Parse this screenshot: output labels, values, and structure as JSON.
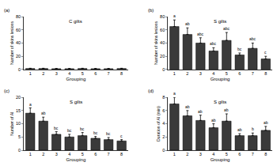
{
  "chart_data": [
    {
      "type": "bar",
      "panel_label": "(a)",
      "title": "C gilts",
      "x_label": "Grouping",
      "y_label": "Number of skins lesions",
      "categories": [
        "1",
        "2",
        "3",
        "4",
        "5",
        "6",
        "7",
        "8"
      ],
      "values": [
        1.5,
        1.5,
        1.2,
        1.2,
        1.5,
        1.2,
        1.2,
        1.5
      ],
      "errors": [
        0.4,
        0.4,
        0.3,
        0.3,
        0.4,
        0.3,
        0.3,
        0.4
      ],
      "color": "#3a3a3a",
      "ylim": [
        0,
        80
      ],
      "yticks": [
        0,
        20,
        40,
        60,
        80
      ],
      "grid": false
    },
    {
      "type": "bar",
      "panel_label": "(b)",
      "title": "S gilts",
      "x_label": "Grouping",
      "y_label": "Number of skins lesions",
      "categories": [
        "1",
        "2",
        "3",
        "4",
        "5",
        "6",
        "7",
        "8"
      ],
      "values": [
        65,
        53,
        40,
        28,
        44,
        22,
        32,
        16
      ],
      "errors": [
        10,
        10,
        8,
        5,
        12,
        3,
        8,
        4
      ],
      "significance_letters": [
        "a",
        "ab",
        "abc",
        "abc",
        "abc",
        "bc",
        "abc",
        "c"
      ],
      "color": "#3a3a3a",
      "ylim": [
        0,
        80
      ],
      "yticks": [
        0,
        20,
        40,
        60,
        80
      ],
      "grid": false
    },
    {
      "type": "bar",
      "panel_label": "(c)",
      "title": "S gilts",
      "x_label": "Grouping",
      "y_label": "Number of AI",
      "categories": [
        "1",
        "2",
        "3",
        "4",
        "5",
        "6",
        "7",
        "8"
      ],
      "values": [
        14,
        11,
        6,
        5,
        5.5,
        4.5,
        4,
        3.5
      ],
      "errors": [
        2,
        1.5,
        1,
        1,
        1.2,
        0.7,
        0.8,
        0.5
      ],
      "significance_letters": [
        "a",
        "ab",
        "bc",
        "bc",
        "bc",
        "bc",
        "bc",
        "c"
      ],
      "color": "#3a3a3a",
      "ylim": [
        0,
        20
      ],
      "yticks": [
        0,
        5,
        10,
        15,
        20
      ],
      "grid": false
    },
    {
      "type": "bar",
      "panel_label": "(d)",
      "title": "S gilts",
      "x_label": "Grouping",
      "y_label": "Duration of AI (min)",
      "categories": [
        "1",
        "2",
        "3",
        "4",
        "5",
        "6",
        "7",
        "8"
      ],
      "values": [
        7,
        5.2,
        4.5,
        3.4,
        4.4,
        2.2,
        2.2,
        3
      ],
      "errors": [
        1,
        0.8,
        0.8,
        0.6,
        1.1,
        0.3,
        0.4,
        0.6
      ],
      "significance_letters": [
        "a",
        "ab",
        "ab",
        "ab",
        "ab",
        "ab",
        "b",
        "ab"
      ],
      "color": "#3a3a3a",
      "ylim": [
        0,
        8
      ],
      "yticks": [
        0,
        2,
        4,
        6,
        8
      ],
      "grid": false
    }
  ]
}
